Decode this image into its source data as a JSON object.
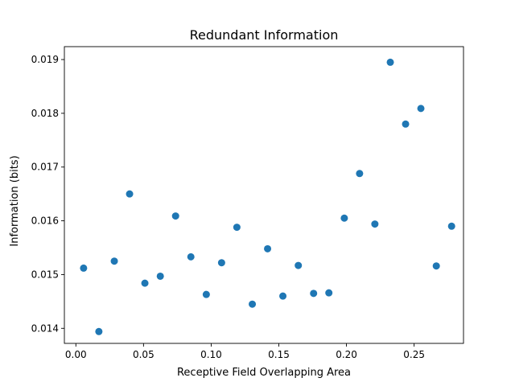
{
  "chart_data": {
    "type": "scatter",
    "title": "Redundant Information",
    "xlabel": "Receptive Field Overlapping Area",
    "ylabel": "Information (bits)",
    "xlim": [
      -0.0085,
      0.2865
    ],
    "ylim": [
      0.01372,
      0.01924
    ],
    "xticks": [
      0.0,
      0.05,
      0.1,
      0.15,
      0.2,
      0.25
    ],
    "xtick_labels": [
      "0.00",
      "0.05",
      "0.10",
      "0.15",
      "0.20",
      "0.25"
    ],
    "yticks": [
      0.014,
      0.015,
      0.016,
      0.017,
      0.018,
      0.019
    ],
    "ytick_labels": [
      "0.014",
      "0.015",
      "0.016",
      "0.017",
      "0.018",
      "0.019"
    ],
    "grid": false,
    "marker_color": "#1f77b4",
    "points": [
      {
        "x": 0.0057,
        "y": 0.01512
      },
      {
        "x": 0.017,
        "y": 0.01394
      },
      {
        "x": 0.0284,
        "y": 0.01525
      },
      {
        "x": 0.0397,
        "y": 0.0165
      },
      {
        "x": 0.051,
        "y": 0.01484
      },
      {
        "x": 0.0624,
        "y": 0.01497
      },
      {
        "x": 0.0737,
        "y": 0.01609
      },
      {
        "x": 0.085,
        "y": 0.01533
      },
      {
        "x": 0.0964,
        "y": 0.01463
      },
      {
        "x": 0.1077,
        "y": 0.01522
      },
      {
        "x": 0.119,
        "y": 0.01588
      },
      {
        "x": 0.1304,
        "y": 0.01445
      },
      {
        "x": 0.1417,
        "y": 0.01548
      },
      {
        "x": 0.153,
        "y": 0.0146
      },
      {
        "x": 0.1644,
        "y": 0.01517
      },
      {
        "x": 0.1757,
        "y": 0.01465
      },
      {
        "x": 0.187,
        "y": 0.01466
      },
      {
        "x": 0.1984,
        "y": 0.01605
      },
      {
        "x": 0.2097,
        "y": 0.01688
      },
      {
        "x": 0.221,
        "y": 0.01594
      },
      {
        "x": 0.2324,
        "y": 0.01895
      },
      {
        "x": 0.2437,
        "y": 0.0178
      },
      {
        "x": 0.255,
        "y": 0.01809
      },
      {
        "x": 0.2664,
        "y": 0.01516
      },
      {
        "x": 0.2777,
        "y": 0.0159
      }
    ]
  }
}
